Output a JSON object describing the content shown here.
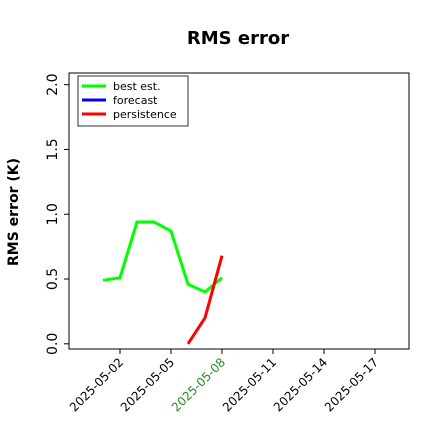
{
  "chart_data": {
    "type": "line",
    "title": "RMS error",
    "y_label": "RMS error (K)",
    "x": [
      "2025-05-01",
      "2025-05-02",
      "2025-05-03",
      "2025-05-04",
      "2025-05-05",
      "2025-05-06",
      "2025-05-07",
      "2025-05-08"
    ],
    "series": [
      {
        "name": "best est.",
        "color": "#00ff00",
        "values": [
          0.49,
          0.51,
          0.94,
          0.94,
          0.87,
          0.46,
          0.4,
          0.51
        ]
      },
      {
        "name": "forecast",
        "color": "#0000ff",
        "values": [
          null,
          null,
          null,
          null,
          null,
          null,
          null,
          null
        ]
      },
      {
        "name": "persistence",
        "color": "#ff0000",
        "values": [
          null,
          null,
          null,
          null,
          null,
          0.0,
          0.2,
          0.68
        ]
      }
    ],
    "xlim": [
      "2025-04-29",
      "2025-05-19"
    ],
    "xticks": [
      "2025-05-02",
      "2025-05-05",
      "2025-05-08",
      "2025-05-11",
      "2025-05-14",
      "2025-05-17"
    ],
    "xtick_highlight": "2025-05-08",
    "xtick_highlight_color": "#228b22",
    "ylim": [
      -0.04,
      2.09
    ],
    "yticks": [
      {
        "value": 0,
        "label": "0.0"
      },
      {
        "value": 0.5,
        "label": "0.5"
      },
      {
        "value": 1,
        "label": "1.0"
      },
      {
        "value": 1.5,
        "label": "1.5"
      },
      {
        "value": 2,
        "label": "2.0"
      }
    ],
    "legend": "upper left"
  }
}
